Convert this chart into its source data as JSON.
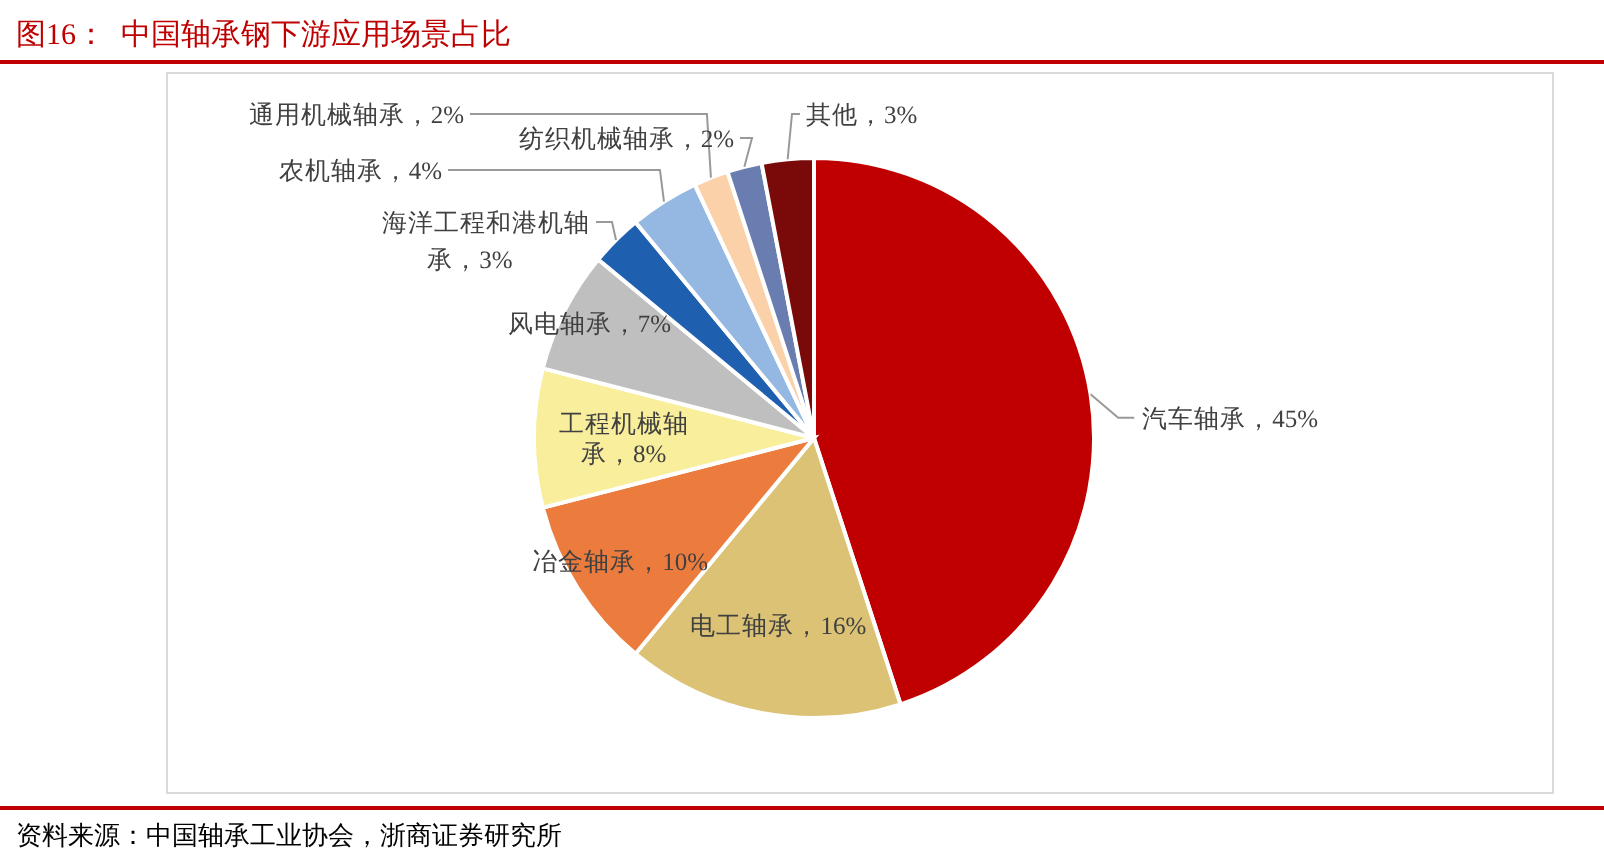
{
  "chart_data": {
    "type": "pie",
    "title": "图16：  中国轴承钢下游应用场景占比",
    "categories": [
      "汽车轴承",
      "电工轴承",
      "冶金轴承",
      "工程机械轴承",
      "风电轴承",
      "海洋工程和港机轴承",
      "农机轴承",
      "通用机械轴承",
      "纺织机械轴承",
      "其他"
    ],
    "values": [
      45,
      16,
      10,
      8,
      7,
      3,
      4,
      2,
      2,
      3
    ],
    "value_labels": [
      "45%",
      "16%",
      "10%",
      "8%",
      "7%",
      "3%",
      "4%",
      "2%",
      "2%",
      "3%"
    ],
    "colors": [
      "#c00000",
      "#dbc274",
      "#ec7c3e",
      "#f8ee9c",
      "#bfbfbf",
      "#1e5fb0",
      "#95b8e3",
      "#fbd1aa",
      "#6a7db0",
      "#7a0a0a"
    ],
    "annotations": [
      "资料来源：中国轴承工业协会，浙商证券研究所"
    ]
  }
}
